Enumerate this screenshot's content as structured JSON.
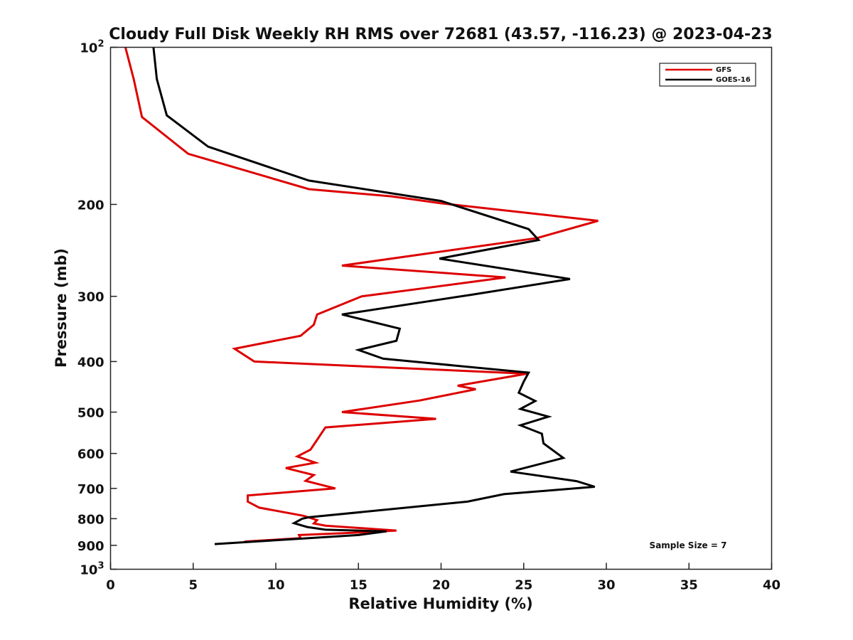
{
  "chart_data": {
    "type": "line",
    "title": "Cloudy Full Disk Weekly RH RMS over 72681 (43.57, -116.23) @ 2023-04-23",
    "xlabel": "Relative Humidity (%)",
    "ylabel": "Pressure (mb)",
    "xlim": [
      0,
      40
    ],
    "ylim": [
      100,
      1000
    ],
    "y_scale": "log",
    "y_reversed": true,
    "x_ticks": [
      0,
      5,
      10,
      15,
      20,
      25,
      30,
      35,
      40
    ],
    "y_ticks": [
      {
        "value": 100,
        "base": "10",
        "exp": "2"
      },
      {
        "value": 200,
        "label": "200"
      },
      {
        "value": 300,
        "label": "300"
      },
      {
        "value": 400,
        "label": "400"
      },
      {
        "value": 500,
        "label": "500"
      },
      {
        "value": 600,
        "label": "600"
      },
      {
        "value": 700,
        "label": "700"
      },
      {
        "value": 800,
        "label": "800"
      },
      {
        "value": 900,
        "label": "900"
      },
      {
        "value": 1000,
        "base": "10",
        "exp": "3"
      }
    ],
    "grid": false,
    "legend_position": "top-right",
    "annotation": "Sample Size = 7",
    "series": [
      {
        "name": "GFS",
        "color": "#dd0000",
        "points": [
          [
            0.9,
            100
          ],
          [
            1.4,
            115
          ],
          [
            1.9,
            136
          ],
          [
            4.7,
            160
          ],
          [
            12.0,
            187
          ],
          [
            17.0,
            193
          ],
          [
            20.0,
            199
          ],
          [
            29.5,
            215
          ],
          [
            25.8,
            232
          ],
          [
            14.0,
            262
          ],
          [
            23.9,
            276
          ],
          [
            19.5,
            288
          ],
          [
            15.2,
            300
          ],
          [
            12.5,
            325
          ],
          [
            12.3,
            340
          ],
          [
            11.5,
            357
          ],
          [
            7.5,
            378
          ],
          [
            8.7,
            400
          ],
          [
            25.2,
            422
          ],
          [
            21.0,
            445
          ],
          [
            22.1,
            452
          ],
          [
            18.7,
            475
          ],
          [
            14.0,
            500
          ],
          [
            19.7,
            515
          ],
          [
            13.0,
            535
          ],
          [
            12.5,
            565
          ],
          [
            12.1,
            590
          ],
          [
            11.3,
            608
          ],
          [
            12.4,
            625
          ],
          [
            10.6,
            640
          ],
          [
            12.3,
            660
          ],
          [
            11.8,
            677
          ],
          [
            13.6,
            700
          ],
          [
            8.3,
            722
          ],
          [
            8.3,
            742
          ],
          [
            9.0,
            762
          ],
          [
            11.7,
            790
          ],
          [
            12.5,
            805
          ],
          [
            12.3,
            817
          ],
          [
            13.0,
            825
          ],
          [
            17.3,
            843
          ],
          [
            14.5,
            852
          ],
          [
            11.4,
            860
          ],
          [
            11.5,
            872
          ],
          [
            8.1,
            885
          ]
        ]
      },
      {
        "name": "GOES-16",
        "color": "#000000",
        "points": [
          [
            2.6,
            100
          ],
          [
            2.8,
            115
          ],
          [
            3.4,
            135
          ],
          [
            5.9,
            155
          ],
          [
            12.0,
            180
          ],
          [
            20.0,
            197
          ],
          [
            25.3,
            223
          ],
          [
            25.9,
            234
          ],
          [
            19.9,
            254
          ],
          [
            27.8,
            278
          ],
          [
            21.8,
            298
          ],
          [
            14.0,
            325
          ],
          [
            17.5,
            346
          ],
          [
            17.3,
            365
          ],
          [
            15.0,
            380
          ],
          [
            16.5,
            395
          ],
          [
            25.3,
            420
          ],
          [
            25.0,
            437
          ],
          [
            24.7,
            459
          ],
          [
            25.7,
            476
          ],
          [
            24.8,
            493
          ],
          [
            26.5,
            510
          ],
          [
            24.8,
            530
          ],
          [
            26.1,
            550
          ],
          [
            26.2,
            574
          ],
          [
            27.4,
            612
          ],
          [
            24.2,
            650
          ],
          [
            28.2,
            678
          ],
          [
            29.3,
            695
          ],
          [
            23.8,
            718
          ],
          [
            21.6,
            742
          ],
          [
            12.0,
            795
          ],
          [
            11.6,
            800
          ],
          [
            11.1,
            816
          ],
          [
            11.9,
            830
          ],
          [
            13.0,
            840
          ],
          [
            16.7,
            846
          ],
          [
            15.0,
            860
          ],
          [
            6.3,
            895
          ]
        ]
      }
    ]
  }
}
